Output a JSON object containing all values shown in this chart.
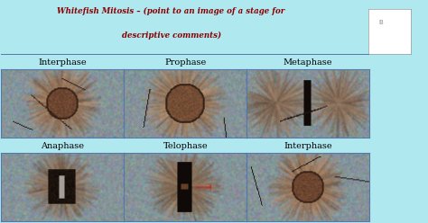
{
  "title_line1": "Whitefish Mitosis – (point to an image of a stage for",
  "title_line2": "descriptive comments)",
  "title_color": "#8B0000",
  "title_style": "italic",
  "background_color": "#b0e8f0",
  "border_color": "#5577aa",
  "cell_labels_top": [
    "Interphase",
    "Prophase",
    "Metaphase"
  ],
  "cell_labels_bottom": [
    "Anaphase",
    "Telophase",
    "Interphase"
  ],
  "label_color": "#000000",
  "label_fontsize": 7,
  "n_cols": 3,
  "n_rows": 2,
  "figsize": [
    4.74,
    2.48
  ],
  "dpi": 100
}
